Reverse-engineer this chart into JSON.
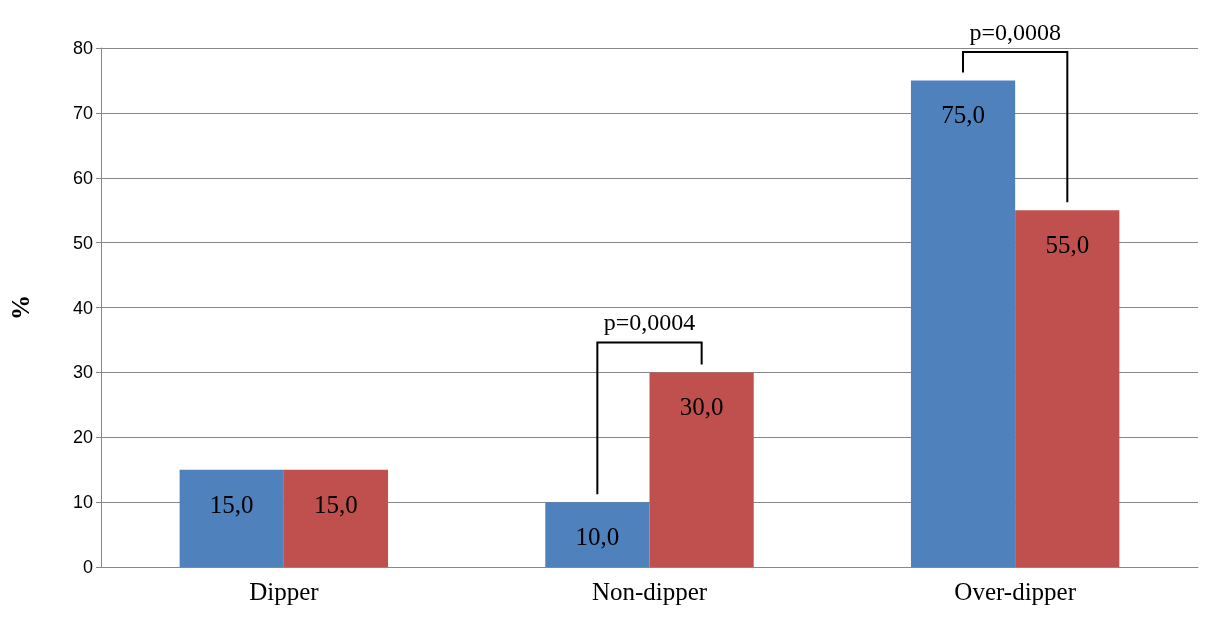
{
  "chart_data": {
    "type": "bar",
    "ylabel": "%",
    "categories": [
      "Dipper",
      "Non-dipper",
      "Over-dipper"
    ],
    "series": [
      {
        "color": "#4f81bd",
        "values": [
          15,
          10,
          75
        ],
        "value_labels": [
          "15,0",
          "10,0",
          "75,0"
        ]
      },
      {
        "color": "#c0504d",
        "values": [
          15,
          30,
          55
        ],
        "value_labels": [
          "15,0",
          "30,0",
          "55,0"
        ]
      }
    ],
    "ylim": [
      0,
      80
    ],
    "yticks": [
      0,
      10,
      20,
      30,
      40,
      50,
      60,
      70,
      80
    ],
    "grid": "y",
    "annotations": [
      "p=0,0004",
      "p=0,0008"
    ]
  }
}
